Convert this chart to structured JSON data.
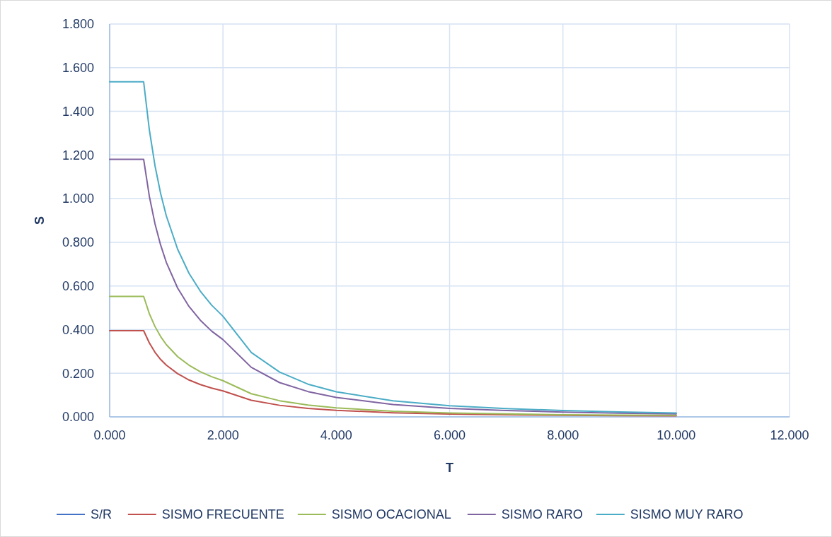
{
  "chart_data": {
    "type": "line",
    "xlabel": "T",
    "ylabel": "S",
    "xlim": [
      0,
      12
    ],
    "xticks": [
      {
        "value": 0,
        "label": "0.000"
      },
      {
        "value": 2,
        "label": "2.000"
      },
      {
        "value": 4,
        "label": "4.000"
      },
      {
        "value": 6,
        "label": "6.000"
      },
      {
        "value": 8,
        "label": "8.000"
      },
      {
        "value": 10,
        "label": "10.000"
      },
      {
        "value": 12,
        "label": "12.000"
      }
    ],
    "ylim": [
      0,
      1.8
    ],
    "yticks": [
      {
        "value": 0,
        "label": "0.000"
      },
      {
        "value": 0.2,
        "label": "0.200"
      },
      {
        "value": 0.4,
        "label": "0.400"
      },
      {
        "value": 0.6,
        "label": "0.600"
      },
      {
        "value": 0.8,
        "label": "0.800"
      },
      {
        "value": 1,
        "label": "1.000"
      },
      {
        "value": 1.2,
        "label": "1.200"
      },
      {
        "value": 1.4,
        "label": "1.400"
      },
      {
        "value": 1.6,
        "label": "1.600"
      },
      {
        "value": 1.8,
        "label": "1.800"
      }
    ],
    "x": [
      0,
      0.6,
      0.7,
      0.8,
      0.9,
      1.0,
      1.2,
      1.4,
      1.6,
      1.8,
      2.0,
      2.5,
      3,
      3.5,
      4,
      5,
      6,
      7,
      8,
      9,
      10
    ],
    "grid": true,
    "legend": "bottom",
    "marker": "none",
    "line_style": "solid",
    "series": [
      {
        "name": "S/R",
        "color": "#4472c4",
        "values": [
          null,
          null,
          null,
          null,
          null,
          null,
          null,
          null,
          null,
          null,
          null,
          null,
          null,
          null,
          null,
          null,
          null,
          null,
          null,
          null,
          null
        ]
      },
      {
        "name": "SISMO FRECUENTE",
        "color": "#c0504d",
        "values": [
          0.395,
          0.395,
          0.339,
          0.296,
          0.263,
          0.237,
          0.198,
          0.169,
          0.148,
          0.132,
          0.119,
          0.076,
          0.053,
          0.039,
          0.03,
          0.019,
          0.013,
          0.01,
          0.007,
          0.006,
          0.005
        ]
      },
      {
        "name": "SISMO OCACIONAL",
        "color": "#9bbb59",
        "values": [
          0.552,
          0.552,
          0.473,
          0.414,
          0.368,
          0.331,
          0.276,
          0.237,
          0.207,
          0.184,
          0.166,
          0.106,
          0.074,
          0.054,
          0.041,
          0.026,
          0.018,
          0.014,
          0.01,
          0.008,
          0.007
        ]
      },
      {
        "name": "SISMO RARO",
        "color": "#8064a2",
        "values": [
          1.18,
          1.18,
          1.011,
          0.885,
          0.787,
          0.708,
          0.59,
          0.506,
          0.443,
          0.393,
          0.354,
          0.227,
          0.157,
          0.116,
          0.089,
          0.057,
          0.039,
          0.029,
          0.022,
          0.017,
          0.014
        ]
      },
      {
        "name": "SISMO MUY RARO",
        "color": "#4bacc6",
        "values": [
          1.535,
          1.535,
          1.316,
          1.151,
          1.023,
          0.921,
          0.768,
          0.658,
          0.576,
          0.512,
          0.461,
          0.295,
          0.205,
          0.15,
          0.115,
          0.074,
          0.051,
          0.038,
          0.029,
          0.023,
          0.018
        ]
      }
    ]
  }
}
